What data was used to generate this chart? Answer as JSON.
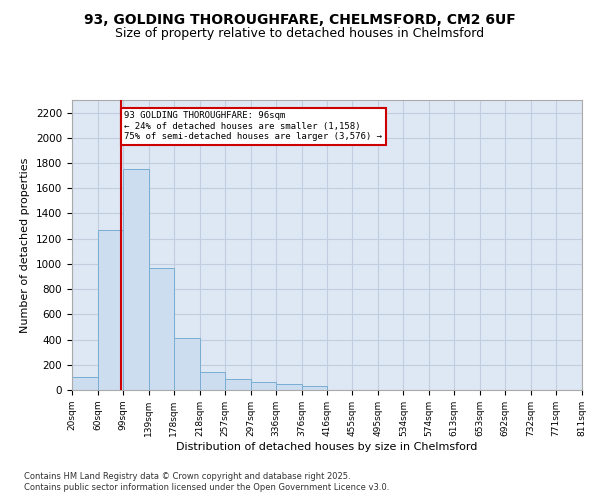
{
  "title_line1": "93, GOLDING THOROUGHFARE, CHELMSFORD, CM2 6UF",
  "title_line2": "Size of property relative to detached houses in Chelmsford",
  "xlabel": "Distribution of detached houses by size in Chelmsford",
  "ylabel": "Number of detached properties",
  "bar_color": "#ccddf0",
  "bar_edge_color": "#7aadd4",
  "grid_color": "#c0cedf",
  "background_color": "#dde8f4",
  "annotation_line_color": "#cc0000",
  "annotation_text": "93 GOLDING THOROUGHFARE: 96sqm\n← 24% of detached houses are smaller (1,158)\n75% of semi-detached houses are larger (3,576) →",
  "property_line_x": 96,
  "bin_edges": [
    20,
    60,
    99,
    139,
    178,
    218,
    257,
    297,
    336,
    376,
    416,
    455,
    495,
    534,
    574,
    613,
    653,
    692,
    732,
    771,
    811
  ],
  "bin_values": [
    100,
    1270,
    1750,
    970,
    410,
    145,
    85,
    60,
    50,
    30,
    0,
    0,
    0,
    0,
    0,
    0,
    0,
    0,
    0,
    0
  ],
  "ylim": [
    0,
    2300
  ],
  "yticks": [
    0,
    200,
    400,
    600,
    800,
    1000,
    1200,
    1400,
    1600,
    1800,
    2000,
    2200
  ],
  "footer_line1": "Contains HM Land Registry data © Crown copyright and database right 2025.",
  "footer_line2": "Contains public sector information licensed under the Open Government Licence v3.0."
}
